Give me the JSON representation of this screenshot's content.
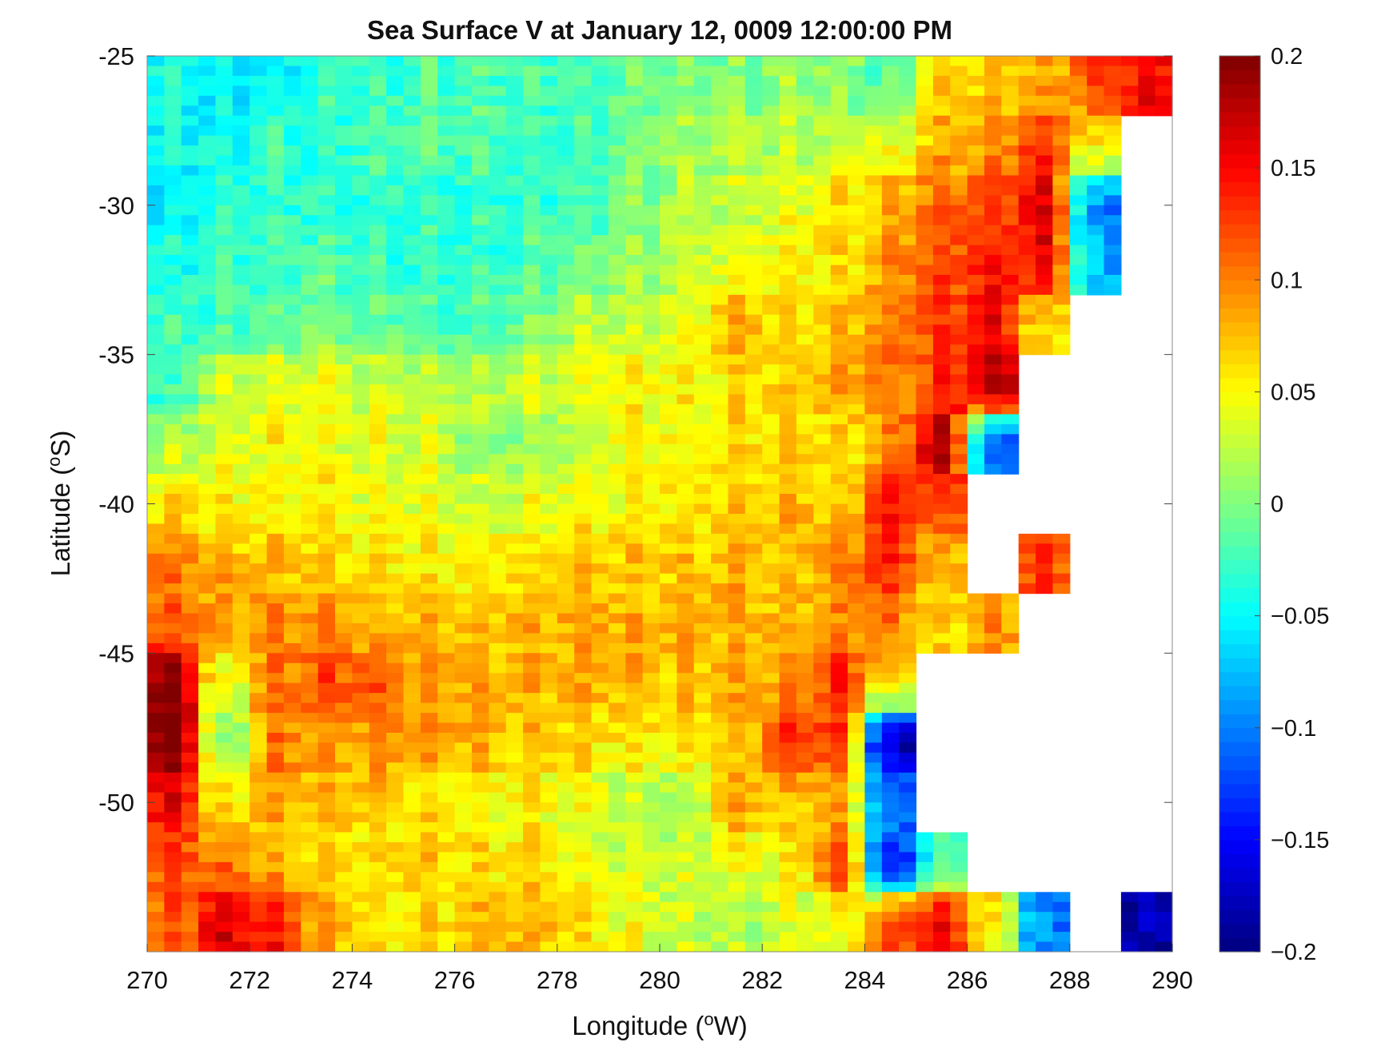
{
  "chart_data": {
    "type": "heatmap",
    "title": "Sea Surface V at January 12, 0009 12:00:00 PM",
    "xlabel": "Longitude (oW)",
    "xlabel_base": "Longitude (",
    "xlabel_sup": "o",
    "xlabel_end": "W)",
    "ylabel_base": "Latitude (",
    "ylabel_sup": "o",
    "ylabel_end": "S)",
    "xlim": [
      270,
      290
    ],
    "ylim": [
      -55,
      -25
    ],
    "xticks": [
      "270",
      "272",
      "274",
      "276",
      "278",
      "280",
      "282",
      "284",
      "286",
      "288",
      "290"
    ],
    "yticks": [
      "-25",
      "-30",
      "-35",
      "-40",
      "-45",
      "-50"
    ],
    "colormap": "jet",
    "clim": [
      -0.2,
      0.2
    ],
    "colorbar_ticks": [
      "0.2",
      "0.15",
      "0.1",
      "0.05",
      "0",
      "-0.05",
      "-0.1",
      "-0.15",
      "-0.2"
    ],
    "land_color": "#ffffff",
    "grid_lon_centers": [
      270.5,
      271.5,
      272.5,
      273.5,
      274.5,
      275.5,
      276.5,
      277.5,
      278.5,
      279.5,
      280.5,
      281.5,
      282.5,
      283.5,
      284.5,
      285.5,
      286.5,
      287.5,
      288.5,
      289.5
    ],
    "grid_lat_centers": [
      -26,
      -28,
      -30,
      -32,
      -34,
      -36,
      -38,
      -40,
      -42,
      -44,
      -46,
      -48,
      -50,
      -52,
      -54
    ],
    "values": [
      [
        -0.04,
        -0.06,
        -0.05,
        -0.03,
        -0.03,
        -0.02,
        -0.02,
        -0.02,
        -0.03,
        -0.01,
        0.0,
        0.0,
        0.01,
        0.01,
        -0.02,
        0.06,
        0.07,
        0.08,
        0.12,
        0.15
      ],
      [
        -0.05,
        -0.04,
        -0.03,
        -0.03,
        -0.02,
        -0.02,
        -0.02,
        -0.03,
        -0.02,
        0.0,
        0.01,
        0.02,
        0.02,
        0.03,
        0.04,
        0.08,
        0.09,
        0.13,
        0.05,
        null
      ],
      [
        -0.05,
        -0.04,
        -0.03,
        -0.03,
        -0.03,
        -0.03,
        -0.03,
        -0.03,
        -0.02,
        0.0,
        0.02,
        0.03,
        0.04,
        0.06,
        0.08,
        0.11,
        0.12,
        0.16,
        -0.1,
        null
      ],
      [
        -0.04,
        -0.03,
        -0.02,
        -0.02,
        -0.03,
        -0.03,
        -0.03,
        -0.02,
        -0.01,
        0.01,
        0.03,
        0.04,
        0.05,
        0.06,
        0.09,
        0.12,
        0.14,
        0.15,
        -0.08,
        null
      ],
      [
        -0.03,
        -0.02,
        -0.01,
        0.0,
        -0.01,
        -0.02,
        -0.02,
        0.0,
        0.02,
        0.03,
        0.04,
        0.08,
        0.06,
        0.07,
        0.1,
        0.12,
        0.15,
        0.06,
        null,
        null
      ],
      [
        -0.03,
        0.03,
        0.04,
        0.04,
        0.03,
        0.03,
        0.02,
        0.03,
        0.04,
        0.05,
        0.05,
        0.06,
        0.07,
        0.08,
        0.1,
        0.13,
        0.18,
        null,
        null,
        null
      ],
      [
        0.02,
        0.04,
        0.05,
        0.04,
        0.04,
        0.03,
        0.01,
        0.01,
        0.03,
        0.05,
        0.05,
        0.06,
        0.07,
        0.06,
        0.09,
        0.18,
        -0.12,
        null,
        null,
        null
      ],
      [
        0.06,
        0.05,
        0.05,
        0.05,
        0.04,
        0.04,
        0.03,
        0.04,
        0.05,
        0.05,
        0.06,
        0.07,
        0.08,
        0.07,
        0.14,
        0.12,
        null,
        null,
        null,
        null
      ],
      [
        0.1,
        0.08,
        0.07,
        0.07,
        0.06,
        0.05,
        0.06,
        0.06,
        0.07,
        0.07,
        0.07,
        0.08,
        0.07,
        0.1,
        0.13,
        0.08,
        null,
        0.12,
        null,
        null
      ],
      [
        0.11,
        0.09,
        0.1,
        0.09,
        0.08,
        0.08,
        0.07,
        0.08,
        0.09,
        0.08,
        0.08,
        0.08,
        0.08,
        0.09,
        0.1,
        0.06,
        0.09,
        null,
        null,
        null
      ],
      [
        0.2,
        0.03,
        0.1,
        0.12,
        0.11,
        0.09,
        0.08,
        0.08,
        0.08,
        0.08,
        0.07,
        0.08,
        0.09,
        0.13,
        0.06,
        null,
        null,
        null,
        null,
        null
      ],
      [
        0.2,
        0.0,
        0.1,
        0.09,
        0.09,
        0.09,
        0.08,
        0.07,
        0.06,
        0.06,
        0.06,
        0.07,
        0.13,
        0.12,
        -0.18,
        null,
        null,
        null,
        null,
        null
      ],
      [
        0.15,
        0.06,
        0.08,
        0.07,
        0.07,
        0.06,
        0.05,
        0.05,
        0.04,
        0.02,
        0.01,
        0.08,
        0.07,
        0.08,
        -0.1,
        null,
        null,
        null,
        null,
        null
      ],
      [
        0.12,
        0.1,
        0.08,
        0.07,
        0.06,
        0.07,
        0.06,
        0.06,
        0.04,
        0.03,
        0.03,
        0.04,
        0.05,
        0.12,
        -0.15,
        -0.02,
        null,
        null,
        null,
        null
      ],
      [
        0.11,
        0.16,
        0.14,
        0.08,
        0.06,
        0.06,
        0.07,
        0.08,
        0.06,
        0.04,
        0.03,
        0.02,
        0.03,
        0.04,
        0.12,
        0.15,
        0.05,
        -0.1,
        null,
        -0.18
      ]
    ]
  }
}
